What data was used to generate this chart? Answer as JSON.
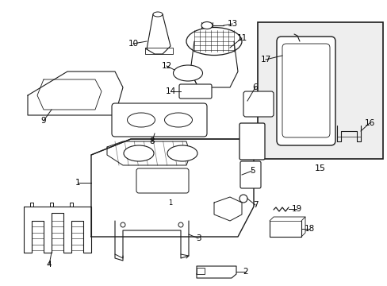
{
  "bg": "#ffffff",
  "lc": "#1a1a1a",
  "tc": "#000000",
  "figsize": [
    4.89,
    3.6
  ],
  "dpi": 100
}
